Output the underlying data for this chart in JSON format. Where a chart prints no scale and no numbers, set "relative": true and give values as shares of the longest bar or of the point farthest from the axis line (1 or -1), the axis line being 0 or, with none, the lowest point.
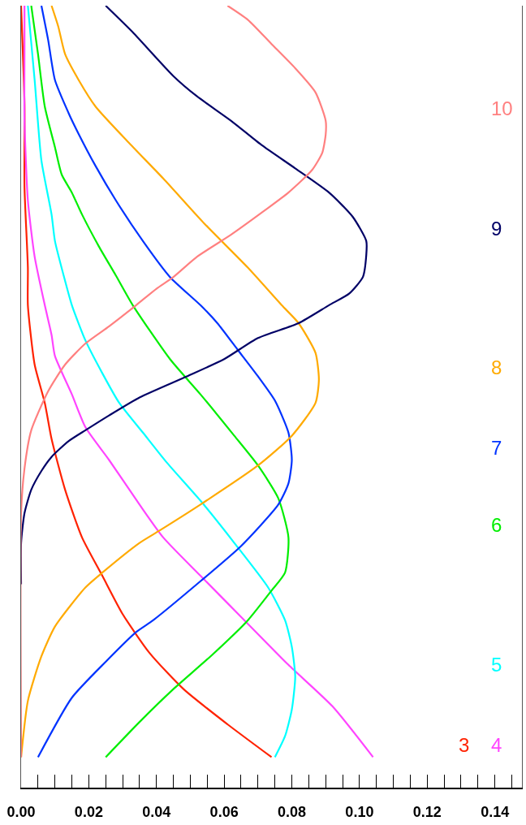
{
  "chart_data": {
    "type": "line",
    "relative": true,
    "xlim": [
      0,
      0.148
    ],
    "xticks": [
      {
        "value": 0,
        "label": "0.00"
      },
      {
        "value": 0.005,
        "label": null
      },
      {
        "value": 0.01,
        "label": null
      },
      {
        "value": 0.015,
        "label": null
      },
      0.02,
      {
        "value": 0.025,
        "label": null
      },
      {
        "value": 0.03,
        "label": null
      },
      {
        "value": 0.035,
        "label": null
      },
      0.04,
      {
        "value": 0.045,
        "label": null
      },
      {
        "value": 0.05,
        "label": null
      },
      {
        "value": 0.055,
        "label": null
      },
      0.06,
      {
        "value": 0.065,
        "label": null
      },
      {
        "value": 0.07,
        "label": null
      },
      {
        "value": 0.075,
        "label": null
      },
      0.08,
      {
        "value": 0.085,
        "label": null
      },
      {
        "value": 0.09,
        "label": null
      },
      {
        "value": 0.095,
        "label": null
      },
      {
        "value": 0.1,
        "label": "0.10"
      },
      {
        "value": 0.105,
        "label": null
      },
      {
        "value": 0.11,
        "label": null
      },
      {
        "value": 0.115,
        "label": null
      },
      0.12,
      {
        "value": 0.125,
        "label": null
      },
      {
        "value": 0.13,
        "label": null
      },
      {
        "value": 0.135,
        "label": null
      },
      0.14,
      {
        "value": 0.145,
        "label": null
      }
    ],
    "series": [
      {
        "name": "3",
        "color": "#ff2200",
        "x": [
          0.0,
          0.001,
          0.001,
          0.002,
          0.002,
          0.004,
          0.007,
          0.009,
          0.013,
          0.018,
          0.024,
          0.03,
          0.038,
          0.048,
          0.061,
          0.074
        ],
        "values": [
          1.0,
          0.874,
          0.768,
          0.665,
          0.617,
          0.541,
          0.492,
          0.446,
          0.381,
          0.32,
          0.271,
          0.222,
          0.172,
          0.126,
          0.081,
          0.039
        ]
      },
      {
        "name": "4",
        "color": "#ff44ff",
        "x": [
          0.001,
          0.001,
          0.001,
          0.002,
          0.004,
          0.007,
          0.009,
          0.01,
          0.015,
          0.019,
          0.026,
          0.035,
          0.042,
          0.053,
          0.066,
          0.079,
          0.092,
          0.104
        ],
        "values": [
          1.0,
          0.946,
          0.853,
          0.751,
          0.679,
          0.617,
          0.579,
          0.552,
          0.503,
          0.461,
          0.419,
          0.362,
          0.32,
          0.271,
          0.214,
          0.157,
          0.104,
          0.039
        ]
      },
      {
        "name": "5",
        "color": "#00ffff",
        "x": [
          0.002,
          0.004,
          0.006,
          0.009,
          0.01,
          0.013,
          0.015,
          0.019,
          0.024,
          0.029,
          0.036,
          0.043,
          0.053,
          0.063,
          0.073,
          0.078,
          0.08,
          0.081,
          0.08,
          0.078,
          0.075
        ],
        "values": [
          1.0,
          0.905,
          0.802,
          0.733,
          0.699,
          0.648,
          0.617,
          0.572,
          0.53,
          0.492,
          0.454,
          0.416,
          0.367,
          0.313,
          0.256,
          0.214,
          0.18,
          0.142,
          0.1,
          0.066,
          0.039
        ]
      },
      {
        "name": "6",
        "color": "#00ee00",
        "x": [
          0.003,
          0.005,
          0.007,
          0.01,
          0.012,
          0.015,
          0.018,
          0.023,
          0.028,
          0.033,
          0.044,
          0.053,
          0.063,
          0.07,
          0.076,
          0.079,
          0.078,
          0.074,
          0.067,
          0.056,
          0.045,
          0.035,
          0.025
        ],
        "values": [
          1.0,
          0.938,
          0.871,
          0.819,
          0.784,
          0.761,
          0.733,
          0.692,
          0.655,
          0.617,
          0.548,
          0.503,
          0.45,
          0.412,
          0.37,
          0.32,
          0.275,
          0.252,
          0.214,
          0.168,
          0.126,
          0.084,
          0.039
        ]
      },
      {
        "name": "7",
        "color": "#0033ff",
        "x": [
          0.006,
          0.008,
          0.01,
          0.014,
          0.017,
          0.022,
          0.028,
          0.036,
          0.044,
          0.053,
          0.058,
          0.064,
          0.07,
          0.075,
          0.079,
          0.08,
          0.079,
          0.076,
          0.065,
          0.053,
          0.039,
          0.034,
          0.025,
          0.015,
          0.005
        ],
        "values": [
          1.0,
          0.956,
          0.905,
          0.863,
          0.836,
          0.795,
          0.751,
          0.699,
          0.653,
          0.617,
          0.594,
          0.56,
          0.526,
          0.495,
          0.454,
          0.419,
          0.389,
          0.362,
          0.309,
          0.264,
          0.214,
          0.199,
          0.161,
          0.115,
          0.039
        ]
      },
      {
        "name": "8",
        "color": "#ffaa00",
        "x": [
          0.009,
          0.011,
          0.013,
          0.017,
          0.022,
          0.032,
          0.042,
          0.054,
          0.067,
          0.077,
          0.082,
          0.087,
          0.088,
          0.087,
          0.08,
          0.07,
          0.053,
          0.041,
          0.035,
          0.024,
          0.019,
          0.01,
          0.006,
          0.002,
          0.0
        ],
        "values": [
          1.0,
          0.973,
          0.938,
          0.905,
          0.871,
          0.824,
          0.779,
          0.722,
          0.665,
          0.617,
          0.594,
          0.556,
          0.522,
          0.492,
          0.45,
          0.412,
          0.362,
          0.329,
          0.313,
          0.275,
          0.256,
          0.206,
          0.168,
          0.111,
          0.039
        ]
      },
      {
        "name": "9",
        "color": "#000066",
        "x": [
          0.025,
          0.033,
          0.045,
          0.052,
          0.062,
          0.071,
          0.081,
          0.091,
          0.098,
          0.102,
          0.102,
          0.101,
          0.097,
          0.091,
          0.082,
          0.07,
          0.06,
          0.049,
          0.035,
          0.026,
          0.019,
          0.014,
          0.009,
          0.006,
          0.003,
          0.001,
          0.0,
          0.0
        ],
        "values": [
          1.0,
          0.966,
          0.91,
          0.884,
          0.853,
          0.822,
          0.792,
          0.761,
          0.73,
          0.699,
          0.681,
          0.653,
          0.632,
          0.617,
          0.594,
          0.575,
          0.548,
          0.526,
          0.499,
          0.476,
          0.457,
          0.443,
          0.423,
          0.405,
          0.381,
          0.351,
          0.313,
          0.26
        ]
      },
      {
        "name": "10",
        "color": "#ff8080",
        "x": [
          0.061,
          0.067,
          0.074,
          0.081,
          0.087,
          0.09,
          0.09,
          0.089,
          0.086,
          0.079,
          0.071,
          0.062,
          0.052,
          0.045,
          0.04,
          0.034,
          0.026,
          0.019,
          0.013,
          0.008,
          0.003,
          0.001,
          0.0,
          0.0
        ],
        "values": [
          1.0,
          0.982,
          0.951,
          0.92,
          0.889,
          0.853,
          0.835,
          0.812,
          0.79,
          0.761,
          0.735,
          0.707,
          0.679,
          0.653,
          0.638,
          0.617,
          0.59,
          0.568,
          0.541,
          0.507,
          0.457,
          0.408,
          0.351,
          0.039
        ]
      }
    ]
  }
}
